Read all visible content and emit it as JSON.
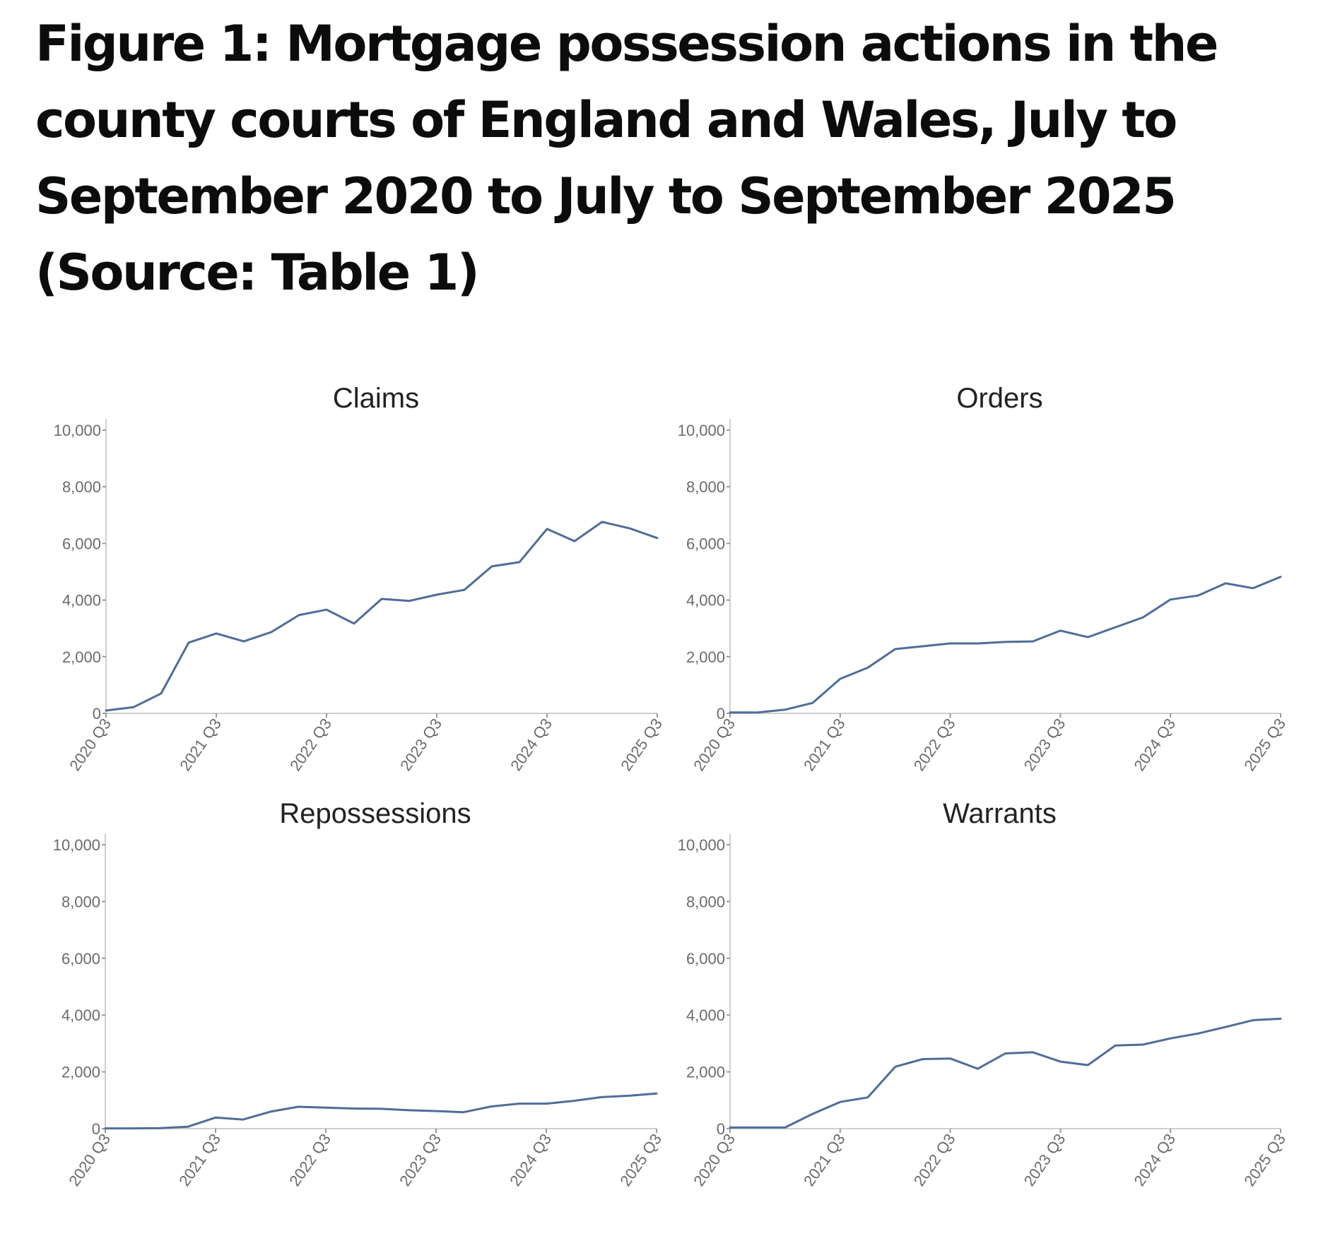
{
  "figure": {
    "title_lines": [
      "Figure 1: Mortgage possession actions in the",
      "county courts of England and Wales, July to",
      "September 2020 to July to September 2025",
      "(Source: Table 1)"
    ]
  },
  "style": {
    "line_color": "#4f6d99",
    "axis_color": "#cfcfcf",
    "tick_label_color": "#6b6b6b",
    "title_color": "#0b0c0c"
  },
  "chart_data": [
    {
      "type": "line",
      "title": "Claims",
      "xlabel": "",
      "ylabel": "",
      "ylim": [
        0,
        10000
      ],
      "yticks": [
        "0",
        "2,000",
        "4,000",
        "6,000",
        "8,000",
        "10,000"
      ],
      "xtick_labels": [
        "2020 Q3",
        "2021 Q3",
        "2022 Q3",
        "2023 Q3",
        "2024 Q3",
        "2025 Q3"
      ],
      "grid": false,
      "x": [
        "2020 Q3",
        "2020 Q4",
        "2021 Q1",
        "2021 Q2",
        "2021 Q3",
        "2021 Q4",
        "2022 Q1",
        "2022 Q2",
        "2022 Q3",
        "2022 Q4",
        "2023 Q1",
        "2023 Q2",
        "2023 Q3",
        "2023 Q4",
        "2024 Q1",
        "2024 Q2",
        "2024 Q3",
        "2024 Q4",
        "2025 Q1",
        "2025 Q2",
        "2025 Q3"
      ],
      "values": [
        100,
        220,
        700,
        2500,
        2820,
        2540,
        2870,
        3470,
        3660,
        3170,
        4040,
        3970,
        4190,
        4360,
        5190,
        5340,
        6510,
        6080,
        6760,
        6530,
        6190
      ]
    },
    {
      "type": "line",
      "title": "Orders",
      "xlabel": "",
      "ylabel": "",
      "ylim": [
        0,
        10000
      ],
      "yticks": [
        "0",
        "2,000",
        "4,000",
        "6,000",
        "8,000",
        "10,000"
      ],
      "xtick_labels": [
        "2020 Q3",
        "2021 Q3",
        "2022 Q3",
        "2023 Q3",
        "2024 Q3",
        "2025 Q3"
      ],
      "grid": false,
      "x": [
        "2020 Q3",
        "2020 Q4",
        "2021 Q1",
        "2021 Q2",
        "2021 Q3",
        "2021 Q4",
        "2022 Q1",
        "2022 Q2",
        "2022 Q3",
        "2022 Q4",
        "2023 Q1",
        "2023 Q2",
        "2023 Q3",
        "2023 Q4",
        "2024 Q1",
        "2024 Q2",
        "2024 Q3",
        "2024 Q4",
        "2025 Q1",
        "2025 Q2",
        "2025 Q3"
      ],
      "values": [
        30,
        30,
        130,
        370,
        1220,
        1610,
        2270,
        2370,
        2470,
        2470,
        2520,
        2540,
        2920,
        2690,
        3040,
        3390,
        4020,
        4160,
        4590,
        4420,
        4820
      ]
    },
    {
      "type": "line",
      "title": "Repossessions",
      "xlabel": "",
      "ylabel": "",
      "ylim": [
        0,
        10000
      ],
      "yticks": [
        "0",
        "2,000",
        "4,000",
        "6,000",
        "8,000",
        "10,000"
      ],
      "xtick_labels": [
        "2020 Q3",
        "2021 Q3",
        "2022 Q3",
        "2023 Q3",
        "2024 Q3",
        "2025 Q3"
      ],
      "grid": false,
      "x": [
        "2020 Q3",
        "2020 Q4",
        "2021 Q1",
        "2021 Q2",
        "2021 Q3",
        "2021 Q4",
        "2022 Q1",
        "2022 Q2",
        "2022 Q3",
        "2022 Q4",
        "2023 Q1",
        "2023 Q2",
        "2023 Q3",
        "2023 Q4",
        "2024 Q1",
        "2024 Q2",
        "2024 Q3",
        "2024 Q4",
        "2025 Q1",
        "2025 Q2",
        "2025 Q3"
      ],
      "values": [
        10,
        10,
        20,
        70,
        390,
        320,
        600,
        770,
        740,
        710,
        700,
        650,
        620,
        580,
        780,
        880,
        880,
        980,
        1110,
        1160,
        1240
      ]
    },
    {
      "type": "line",
      "title": "Warrants",
      "xlabel": "",
      "ylabel": "",
      "ylim": [
        0,
        10000
      ],
      "yticks": [
        "0",
        "2,000",
        "4,000",
        "6,000",
        "8,000",
        "10,000"
      ],
      "xtick_labels": [
        "2020 Q3",
        "2021 Q3",
        "2022 Q3",
        "2023 Q3",
        "2024 Q3",
        "2025 Q3"
      ],
      "grid": false,
      "x": [
        "2020 Q3",
        "2020 Q4",
        "2021 Q1",
        "2021 Q2",
        "2021 Q3",
        "2021 Q4",
        "2022 Q1",
        "2022 Q2",
        "2022 Q3",
        "2022 Q4",
        "2023 Q1",
        "2023 Q2",
        "2023 Q3",
        "2023 Q4",
        "2024 Q1",
        "2024 Q2",
        "2024 Q3",
        "2024 Q4",
        "2025 Q1",
        "2025 Q2",
        "2025 Q3"
      ],
      "values": [
        40,
        40,
        40,
        520,
        940,
        1100,
        2180,
        2450,
        2470,
        2110,
        2650,
        2690,
        2360,
        2240,
        2930,
        2960,
        3180,
        3350,
        3580,
        3820,
        3870
      ]
    }
  ]
}
